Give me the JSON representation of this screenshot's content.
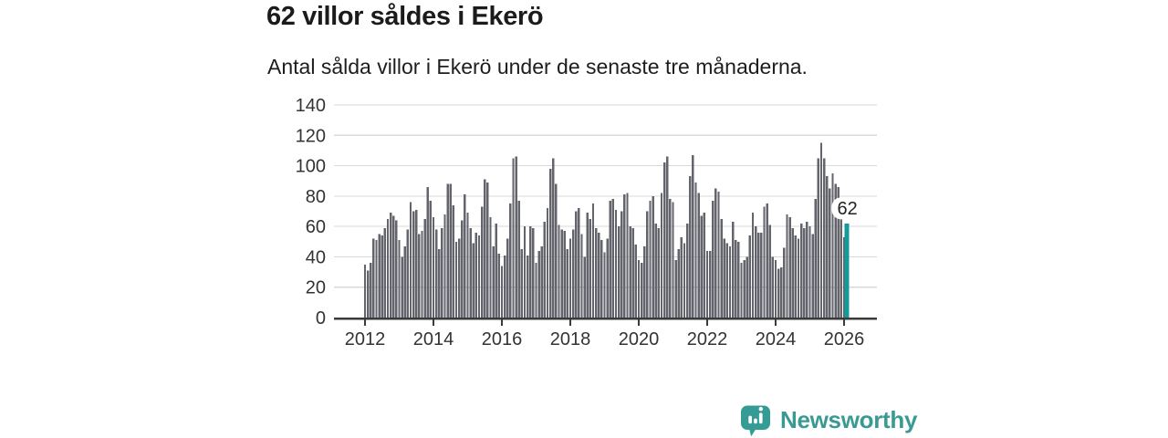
{
  "header": {
    "title": "62 villor såldes i Ekerö",
    "subtitle": "Antal sålda villor i Ekerö under de senaste tre månaderna."
  },
  "chart_data": {
    "type": "bar",
    "title": "62 villor såldes i Ekerö",
    "subtitle": "Antal sålda villor i Ekerö under de senaste tre månaderna.",
    "x_start_year": 2012,
    "x_start_month": 1,
    "x_end_label": "2026",
    "xticks": [
      "2012",
      "2014",
      "2016",
      "2018",
      "2020",
      "2022",
      "2024",
      "2026"
    ],
    "yticks": [
      0,
      20,
      40,
      60,
      80,
      100,
      120,
      140
    ],
    "ylim": [
      0,
      140
    ],
    "grid": true,
    "legend": "none",
    "values": [
      35,
      31,
      36,
      52,
      51,
      55,
      54,
      59,
      65,
      69,
      67,
      64,
      51,
      40,
      47,
      58,
      76,
      70,
      71,
      55,
      57,
      65,
      86,
      77,
      66,
      58,
      45,
      59,
      68,
      88,
      88,
      74,
      50,
      52,
      64,
      81,
      69,
      59,
      49,
      56,
      54,
      73,
      91,
      89,
      66,
      47,
      62,
      42,
      34,
      41,
      52,
      75,
      105,
      106,
      77,
      45,
      60,
      41,
      60,
      59,
      36,
      44,
      47,
      63,
      72,
      98,
      105,
      88,
      61,
      58,
      57,
      45,
      52,
      58,
      70,
      72,
      55,
      40,
      69,
      65,
      75,
      59,
      56,
      51,
      43,
      52,
      77,
      78,
      71,
      60,
      70,
      81,
      82,
      60,
      59,
      48,
      38,
      36,
      47,
      70,
      77,
      80,
      62,
      59,
      82,
      102,
      106,
      78,
      76,
      38,
      45,
      53,
      49,
      62,
      93,
      107,
      89,
      82,
      67,
      69,
      44,
      44,
      77,
      85,
      83,
      65,
      52,
      49,
      47,
      63,
      51,
      50,
      36,
      38,
      40,
      54,
      69,
      60,
      56,
      56,
      73,
      75,
      61,
      40,
      38,
      32,
      33,
      46,
      68,
      66,
      59,
      54,
      52,
      62,
      59,
      63,
      60,
      55,
      78,
      105,
      115,
      105,
      93,
      85,
      95,
      88,
      86,
      72,
      53,
      62
    ],
    "highlight": {
      "position": "last",
      "value": 62,
      "label": "62"
    },
    "colors": {
      "bar": "#63646c",
      "highlight_bar": "#139a9b",
      "grid": "#d9d9d9",
      "axis": "#3a3a3a",
      "tick_label": "#333333",
      "annotation_text": "#222222"
    }
  },
  "branding": {
    "name": "Newsworthy",
    "color": "#399a93",
    "icon": "newsworthy-speech-bubble-chart-icon"
  }
}
